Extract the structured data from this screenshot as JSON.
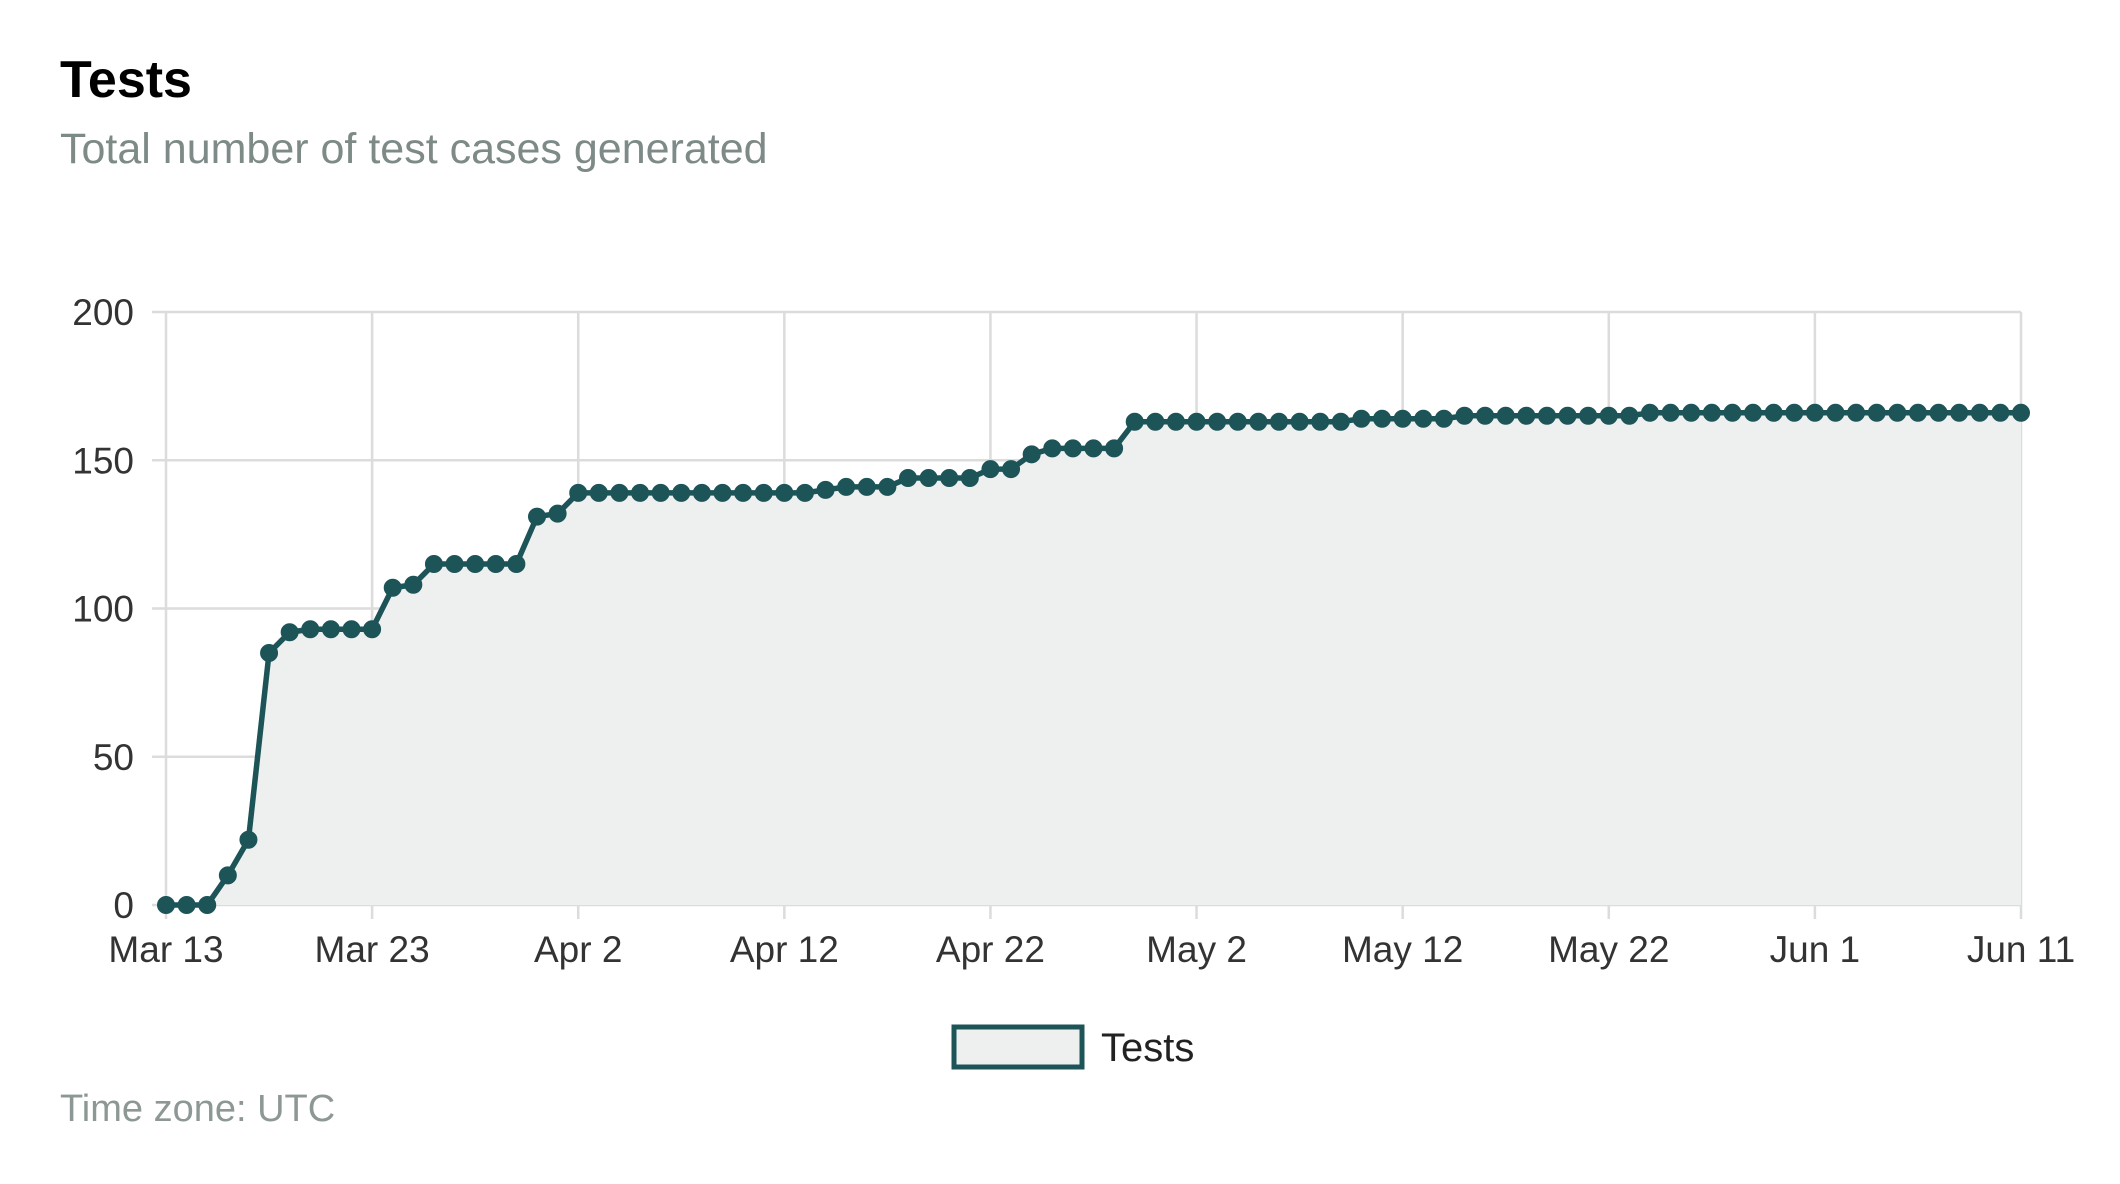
{
  "header": {
    "title": "Tests",
    "subtitle": "Total number of test cases generated"
  },
  "footer": {
    "timezone": "Time zone: UTC"
  },
  "colors": {
    "line": "#1c5458",
    "fill": "#eef0ef",
    "grid": "#dcdcdc"
  },
  "chart_data": {
    "type": "area",
    "title": "Tests",
    "subtitle": "Total number of test cases generated",
    "xlabel": "",
    "ylabel": "",
    "x_type": "date",
    "xlim": [
      "2024-03-13",
      "2024-06-11"
    ],
    "ylim": [
      0,
      200
    ],
    "x_ticks": [
      {
        "date": "2024-03-13",
        "label": "Mar 13"
      },
      {
        "date": "2024-03-23",
        "label": "Mar 23"
      },
      {
        "date": "2024-04-02",
        "label": "Apr 2"
      },
      {
        "date": "2024-04-12",
        "label": "Apr 12"
      },
      {
        "date": "2024-04-22",
        "label": "Apr 22"
      },
      {
        "date": "2024-05-02",
        "label": "May 2"
      },
      {
        "date": "2024-05-12",
        "label": "May 12"
      },
      {
        "date": "2024-05-22",
        "label": "May 22"
      },
      {
        "date": "2024-06-01",
        "label": "Jun 1"
      },
      {
        "date": "2024-06-11",
        "label": "Jun 11"
      }
    ],
    "y_ticks": [
      0,
      50,
      100,
      150,
      200
    ],
    "grid": true,
    "legend": "bottom-center",
    "series": [
      {
        "name": "Tests",
        "x": [
          "2024-03-13",
          "2024-03-14",
          "2024-03-15",
          "2024-03-16",
          "2024-03-17",
          "2024-03-18",
          "2024-03-19",
          "2024-03-20",
          "2024-03-21",
          "2024-03-22",
          "2024-03-23",
          "2024-03-24",
          "2024-03-25",
          "2024-03-26",
          "2024-03-27",
          "2024-03-28",
          "2024-03-29",
          "2024-03-30",
          "2024-03-31",
          "2024-04-01",
          "2024-04-02",
          "2024-04-03",
          "2024-04-04",
          "2024-04-05",
          "2024-04-06",
          "2024-04-07",
          "2024-04-08",
          "2024-04-09",
          "2024-04-10",
          "2024-04-11",
          "2024-04-12",
          "2024-04-13",
          "2024-04-14",
          "2024-04-15",
          "2024-04-16",
          "2024-04-17",
          "2024-04-18",
          "2024-04-19",
          "2024-04-20",
          "2024-04-21",
          "2024-04-22",
          "2024-04-23",
          "2024-04-24",
          "2024-04-25",
          "2024-04-26",
          "2024-04-27",
          "2024-04-28",
          "2024-04-29",
          "2024-04-30",
          "2024-05-01",
          "2024-05-02",
          "2024-05-03",
          "2024-05-04",
          "2024-05-05",
          "2024-05-06",
          "2024-05-07",
          "2024-05-08",
          "2024-05-09",
          "2024-05-10",
          "2024-05-11",
          "2024-05-12",
          "2024-05-13",
          "2024-05-14",
          "2024-05-15",
          "2024-05-16",
          "2024-05-17",
          "2024-05-18",
          "2024-05-19",
          "2024-05-20",
          "2024-05-21",
          "2024-05-22",
          "2024-05-23",
          "2024-05-24",
          "2024-05-25",
          "2024-05-26",
          "2024-05-27",
          "2024-05-28",
          "2024-05-29",
          "2024-05-30",
          "2024-05-31",
          "2024-06-01",
          "2024-06-02",
          "2024-06-03",
          "2024-06-04",
          "2024-06-05",
          "2024-06-06",
          "2024-06-07",
          "2024-06-08",
          "2024-06-09",
          "2024-06-10",
          "2024-06-11"
        ],
        "values": [
          0,
          0,
          0,
          10,
          22,
          85,
          92,
          93,
          93,
          93,
          93,
          107,
          108,
          115,
          115,
          115,
          115,
          115,
          131,
          132,
          139,
          139,
          139,
          139,
          139,
          139,
          139,
          139,
          139,
          139,
          139,
          139,
          140,
          141,
          141,
          141,
          144,
          144,
          144,
          144,
          147,
          147,
          152,
          154,
          154,
          154,
          154,
          163,
          163,
          163,
          163,
          163,
          163,
          163,
          163,
          163,
          163,
          163,
          164,
          164,
          164,
          164,
          164,
          165,
          165,
          165,
          165,
          165,
          165,
          165,
          165,
          165,
          166,
          166,
          166,
          166,
          166,
          166,
          166,
          166,
          166,
          166,
          166,
          166,
          166,
          166,
          166,
          166,
          166,
          166,
          166
        ]
      }
    ]
  }
}
